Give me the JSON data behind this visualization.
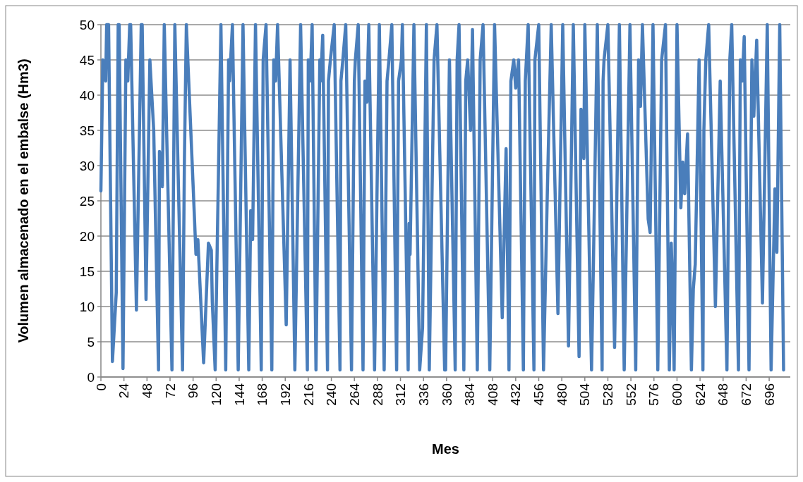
{
  "chart_data": {
    "type": "line",
    "xlabel": "Mes",
    "ylabel": "Volumen almacenado en el embalse (Hm3)",
    "xlim": [
      0,
      718
    ],
    "ylim": [
      0,
      50
    ],
    "xticks": [
      0,
      24,
      48,
      72,
      96,
      120,
      144,
      168,
      192,
      216,
      240,
      264,
      288,
      312,
      336,
      360,
      384,
      408,
      432,
      456,
      480,
      504,
      528,
      552,
      576,
      600,
      624,
      648,
      672,
      696
    ],
    "yticks": [
      0,
      5,
      10,
      15,
      20,
      25,
      30,
      35,
      40,
      45,
      50
    ],
    "grid": "y",
    "marker": "none",
    "line_style": "solid",
    "series": [
      {
        "color": "#4a7ebb",
        "x": [
          0,
          2,
          5,
          6,
          8,
          12,
          16,
          18,
          19,
          23,
          26,
          28,
          30,
          31,
          37,
          42,
          43,
          47,
          51,
          55,
          60,
          61,
          64,
          66,
          74,
          77,
          85,
          87,
          89,
          97,
          99,
          101,
          107,
          112,
          115,
          116,
          119,
          125,
          130,
          133,
          134,
          137,
          143,
          148,
          154,
          156,
          158,
          161,
          167,
          169,
          172,
          178,
          180,
          182,
          184,
          193,
          197,
          202,
          208,
          215,
          216,
          218,
          220,
          224,
          228,
          229,
          231,
          236,
          237,
          239,
          243,
          249,
          250,
          252,
          255,
          261,
          264,
          265,
          268,
          273,
          275,
          277,
          279,
          285,
          290,
          295,
          298,
          300,
          303,
          308,
          310,
          313,
          314,
          320,
          321,
          322,
          326,
          332,
          335,
          339,
          342,
          347,
          350,
          358,
          359,
          363,
          369,
          371,
          373,
          378,
          380,
          382,
          385,
          387,
          392,
          395,
          398,
          405,
          410,
          418,
          422,
          425,
          427,
          430,
          432,
          435,
          440,
          442,
          445,
          451,
          452,
          456,
          461,
          465,
          469,
          476,
          481,
          487,
          492,
          498,
          500,
          503,
          504,
          511,
          513,
          517,
          522,
          523,
          524,
          528,
          535,
          540,
          545,
          551,
          557,
          560,
          562,
          564,
          570,
          572,
          575,
          580,
          584,
          588,
          592,
          594,
          595,
          597,
          600,
          604,
          606,
          608,
          611,
          615,
          617,
          619,
          623,
          627,
          628,
          630,
          633,
          640,
          645,
          652,
          655,
          657,
          664,
          666,
          668,
          670,
          675,
          678,
          680,
          683,
          689,
          694,
          698,
          702,
          704,
          707,
          711
        ],
        "values": [
          26.4,
          45,
          42,
          50,
          50,
          2.2,
          12,
          50,
          50,
          1.2,
          45,
          42,
          50,
          50,
          9.5,
          50,
          50,
          11,
          45,
          35,
          1,
          32,
          27,
          50,
          1,
          50,
          1,
          31,
          50,
          24,
          17.4,
          19.5,
          2,
          19,
          18,
          10.7,
          1,
          50,
          1,
          45,
          42,
          50,
          1,
          50,
          1,
          23.6,
          19.5,
          50,
          1,
          45,
          50,
          1,
          45,
          42,
          50,
          7.4,
          45,
          1,
          50,
          1,
          45,
          42,
          50,
          1,
          45,
          42,
          48.5,
          1,
          42,
          45,
          50,
          1,
          42,
          45,
          50,
          1,
          42,
          45,
          50,
          1,
          42,
          39,
          50,
          1,
          50,
          1,
          42,
          45,
          50,
          1,
          42,
          45,
          50,
          1,
          21.8,
          17.4,
          50,
          1,
          7,
          50,
          1,
          45,
          50,
          1,
          1,
          45,
          1,
          45,
          50,
          1,
          42,
          45,
          35,
          49.3,
          1,
          45,
          50,
          1,
          50,
          8.4,
          32.4,
          1,
          42,
          45,
          41,
          45,
          1,
          42,
          50,
          1,
          45,
          50,
          1,
          26.5,
          50,
          9,
          50,
          4.4,
          50,
          2.9,
          38,
          31,
          50,
          1,
          16.5,
          50,
          1,
          42,
          45,
          50,
          4.2,
          50,
          1,
          50,
          1,
          45,
          38.4,
          50,
          22.4,
          20.5,
          50,
          1,
          45,
          50,
          1,
          19,
          14.5,
          1,
          50,
          24,
          30.5,
          26,
          34.5,
          1,
          12.5,
          16,
          45,
          1,
          35,
          45,
          50,
          10,
          42,
          1,
          45,
          50,
          1,
          45,
          42,
          48.3,
          1,
          45,
          37,
          47.8,
          10.5,
          50,
          1,
          26.7,
          17.7,
          50,
          1
        ]
      }
    ]
  }
}
